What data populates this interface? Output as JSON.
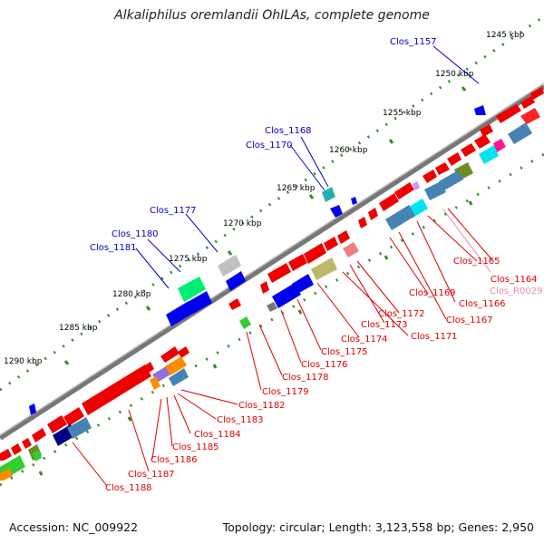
{
  "title": "Alkaliphilus oremlandii OhILAs, complete genome",
  "footer": {
    "accession": "Accession: NC_009922",
    "topology": "Topology: circular; Length: 3,123,558 bp; Genes: 2,950"
  },
  "scale_ticks": [
    "1245 kbp",
    "1250 kbp",
    "1255 kbp",
    "1260 kbp",
    "1265 kbp",
    "1270 kbp",
    "1275 kbp",
    "1280 kbp",
    "1285 kbp",
    "1290 kbp"
  ],
  "outer_labels": [
    "Clos_1157",
    "Clos_1168",
    "Clos_1170",
    "Clos_1177",
    "Clos_1180",
    "Clos_1181"
  ],
  "inner_labels": [
    "Clos_1165",
    "Clos_1164",
    "Clos_R0029",
    "Clos_1166",
    "Clos_1169",
    "Clos_1167",
    "Clos_1172",
    "Clos_1173",
    "Clos_1171",
    "Clos_1174",
    "Clos_1175",
    "Clos_1176",
    "Clos_1178",
    "Clos_1179",
    "Clos_1182",
    "Clos_1183",
    "Clos_1184",
    "Clos_1185",
    "Clos_1186",
    "Clos_1187",
    "Clos_1188"
  ],
  "colors": {
    "outer_label": "#0000cc",
    "inner_label": "#dd0000",
    "rna_label": "#ee88aa",
    "backbone": "#888888",
    "tick": "#2e8b2e"
  }
}
